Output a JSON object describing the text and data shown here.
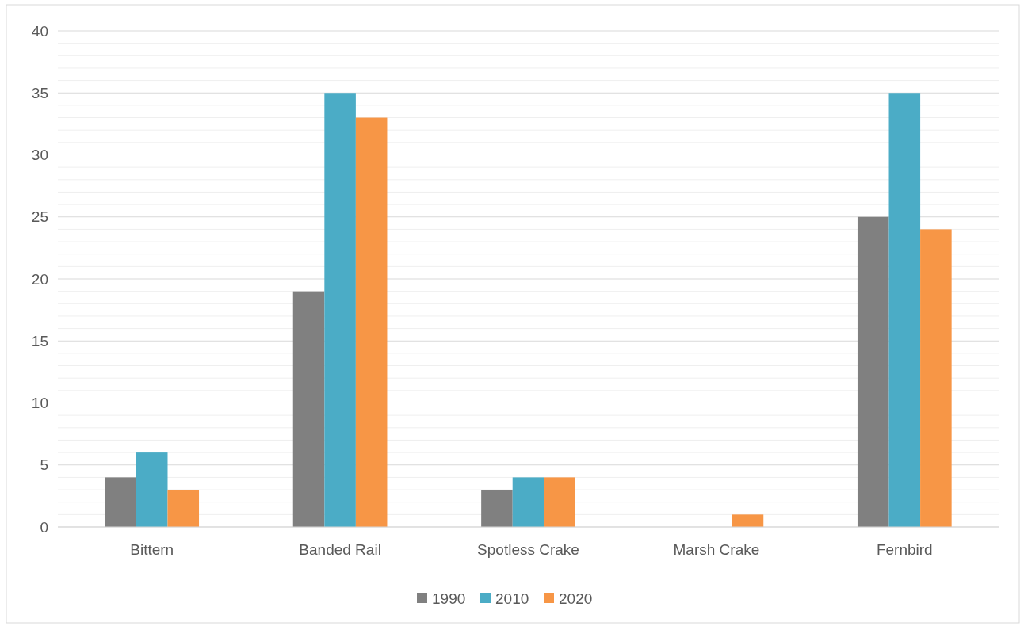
{
  "chart_data": {
    "type": "bar",
    "categories": [
      "Bittern",
      "Banded Rail",
      "Spotless Crake",
      "Marsh Crake",
      "Fernbird"
    ],
    "series": [
      {
        "name": "1990",
        "color": "#808080",
        "values": [
          4,
          19,
          3,
          0,
          25
        ]
      },
      {
        "name": "2010",
        "color": "#4bacc6",
        "values": [
          6,
          35,
          4,
          0,
          35
        ]
      },
      {
        "name": "2020",
        "color": "#f79646",
        "values": [
          3,
          33,
          4,
          1,
          24
        ]
      }
    ],
    "ylim": [
      0,
      40
    ],
    "yticks": [
      0,
      {
        "value": 1,
        "label": null
      },
      {
        "value": 2,
        "label": null
      },
      {
        "value": 3,
        "label": null
      },
      {
        "value": 4,
        "label": null
      },
      5,
      {
        "value": 6,
        "label": null
      },
      {
        "value": 7,
        "label": null
      },
      {
        "value": 8,
        "label": null
      },
      {
        "value": 9,
        "label": null
      },
      10,
      {
        "value": 11,
        "label": null
      },
      {
        "value": 12,
        "label": null
      },
      {
        "value": 13,
        "label": null
      },
      {
        "value": 14,
        "label": null
      },
      15,
      {
        "value": 16,
        "label": null
      },
      {
        "value": 17,
        "label": null
      },
      {
        "value": 18,
        "label": null
      },
      {
        "value": 19,
        "label": null
      },
      20,
      {
        "value": 21,
        "label": null
      },
      {
        "value": 22,
        "label": null
      },
      {
        "value": 23,
        "label": null
      },
      {
        "value": 24,
        "label": null
      },
      25,
      {
        "value": 26,
        "label": null
      },
      {
        "value": 27,
        "label": null
      },
      {
        "value": 28,
        "label": null
      },
      {
        "value": 29,
        "label": null
      },
      30,
      {
        "value": 31,
        "label": null
      },
      {
        "value": 32,
        "label": null
      },
      {
        "value": 33,
        "label": null
      },
      {
        "value": 34,
        "label": null
      },
      35,
      {
        "value": 36,
        "label": null
      },
      {
        "value": 37,
        "label": null
      },
      {
        "value": 38,
        "label": null
      },
      {
        "value": 39,
        "label": null
      },
      40
    ],
    "grid": true,
    "legend": "bottom"
  }
}
